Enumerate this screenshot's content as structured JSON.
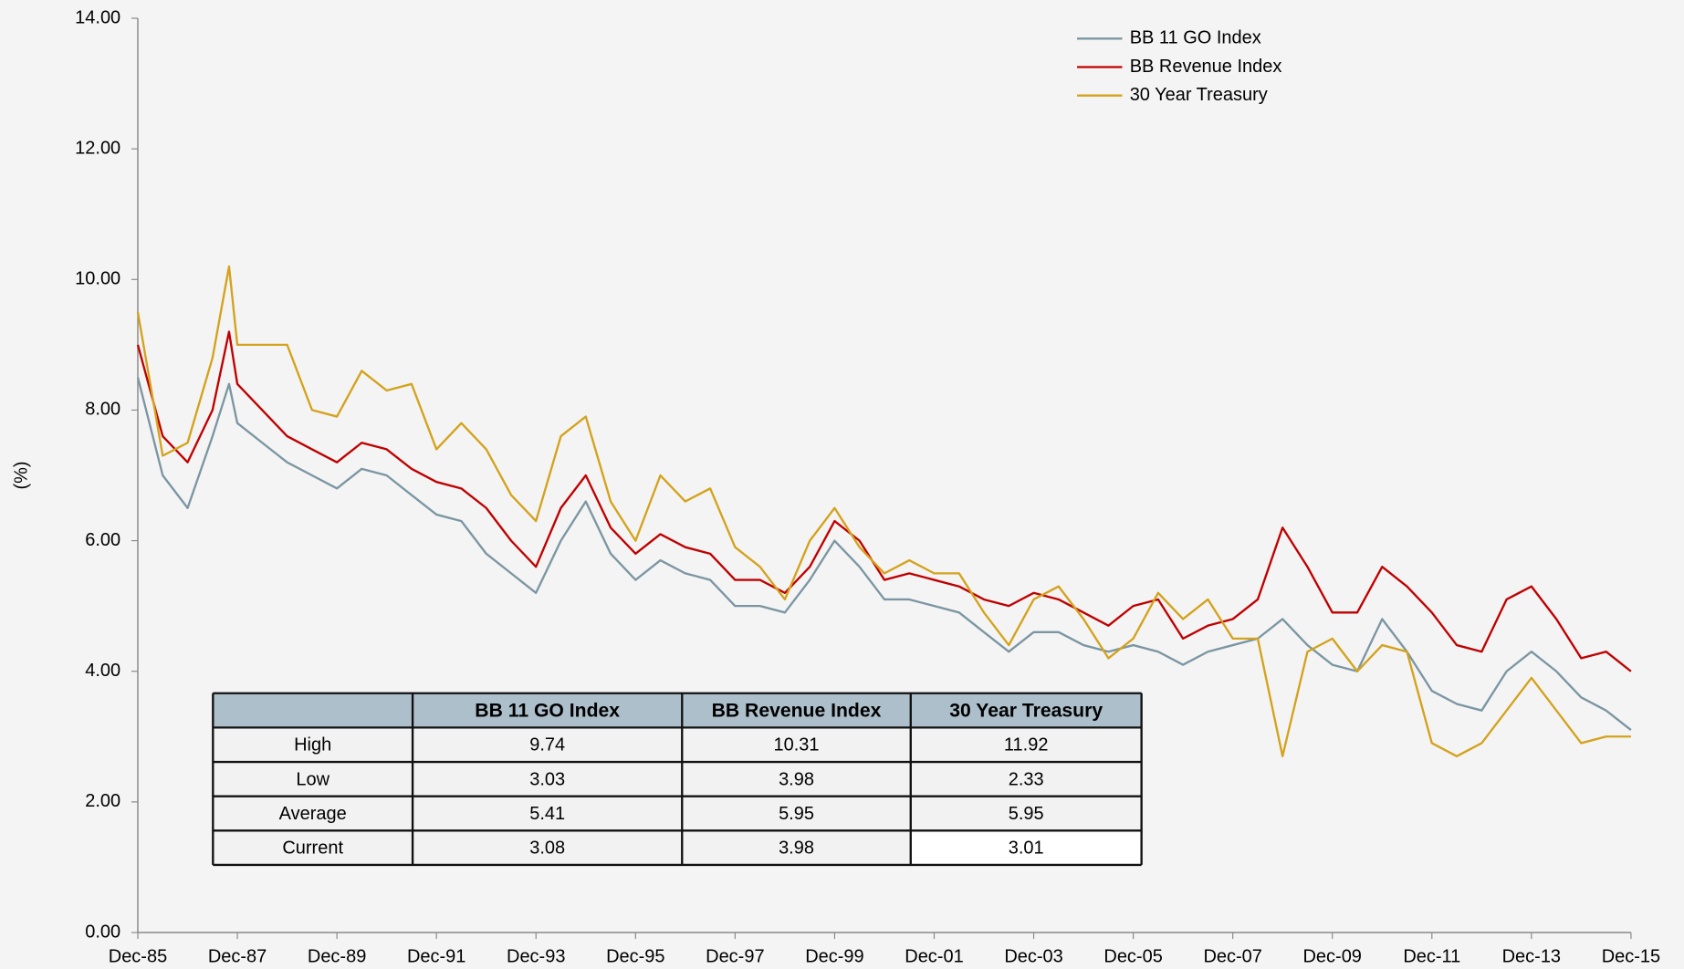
{
  "chart_data": {
    "type": "line",
    "y_label": "(%)",
    "x": [
      "Dec-85",
      "Jun-86",
      "Dec-86",
      "Jun-87",
      "Oct-87",
      "Dec-87",
      "Jun-88",
      "Dec-88",
      "Jun-89",
      "Dec-89",
      "Jun-90",
      "Dec-90",
      "Jun-91",
      "Dec-91",
      "Jun-92",
      "Dec-92",
      "Jun-93",
      "Dec-93",
      "Jun-94",
      "Dec-94",
      "Jun-95",
      "Dec-95",
      "Jun-96",
      "Dec-96",
      "Jun-97",
      "Dec-97",
      "Jun-98",
      "Dec-98",
      "Jun-99",
      "Dec-99",
      "Jun-00",
      "Dec-00",
      "Jun-01",
      "Dec-01",
      "Jun-02",
      "Dec-02",
      "Jun-03",
      "Dec-03",
      "Jun-04",
      "Dec-04",
      "Jun-05",
      "Dec-05",
      "Jun-06",
      "Dec-06",
      "Jun-07",
      "Dec-07",
      "Jun-08",
      "Dec-08",
      "Jun-09",
      "Dec-09",
      "Jun-10",
      "Dec-10",
      "Jun-11",
      "Dec-11",
      "Jun-12",
      "Dec-12",
      "Jun-13",
      "Dec-13",
      "Jun-14",
      "Dec-14",
      "Jun-15",
      "Dec-15"
    ],
    "series": [
      {
        "name": "BB 11 GO Index",
        "color": "#7b96a2",
        "values": [
          8.5,
          7.0,
          6.5,
          7.6,
          8.4,
          7.8,
          7.5,
          7.2,
          7.0,
          6.8,
          7.1,
          7.0,
          6.7,
          6.4,
          6.3,
          5.8,
          5.5,
          5.2,
          6.0,
          6.6,
          5.8,
          5.4,
          5.7,
          5.5,
          5.4,
          5.0,
          5.0,
          4.9,
          5.4,
          6.0,
          5.6,
          5.1,
          5.1,
          5.0,
          4.9,
          4.6,
          4.3,
          4.6,
          4.6,
          4.4,
          4.3,
          4.4,
          4.3,
          4.1,
          4.3,
          4.4,
          4.5,
          4.8,
          4.4,
          4.1,
          4.0,
          4.8,
          4.3,
          3.7,
          3.5,
          3.4,
          4.0,
          4.3,
          4.0,
          3.6,
          3.4,
          3.1
        ]
      },
      {
        "name": "BB Revenue Index",
        "color": "#c00000",
        "values": [
          9.0,
          7.6,
          7.2,
          8.0,
          9.2,
          8.4,
          8.0,
          7.6,
          7.4,
          7.2,
          7.5,
          7.4,
          7.1,
          6.9,
          6.8,
          6.5,
          6.0,
          5.6,
          6.5,
          7.0,
          6.2,
          5.8,
          6.1,
          5.9,
          5.8,
          5.4,
          5.4,
          5.2,
          5.6,
          6.3,
          6.0,
          5.4,
          5.5,
          5.4,
          5.3,
          5.1,
          5.0,
          5.2,
          5.1,
          4.9,
          4.7,
          5.0,
          5.1,
          4.5,
          4.7,
          4.8,
          5.1,
          6.2,
          5.6,
          4.9,
          4.9,
          5.6,
          5.3,
          4.9,
          4.4,
          4.3,
          5.1,
          5.3,
          4.8,
          4.2,
          4.3,
          4.0
        ]
      },
      {
        "name": "30 Year Treasury",
        "color": "#d4a21c",
        "values": [
          9.5,
          7.3,
          7.5,
          8.8,
          10.2,
          9.0,
          9.0,
          9.0,
          8.0,
          7.9,
          8.6,
          8.3,
          8.4,
          7.4,
          7.8,
          7.4,
          6.7,
          6.3,
          7.6,
          7.9,
          6.6,
          6.0,
          7.0,
          6.6,
          6.8,
          5.9,
          5.6,
          5.1,
          6.0,
          6.5,
          5.9,
          5.5,
          5.7,
          5.5,
          5.5,
          4.9,
          4.4,
          5.1,
          5.3,
          4.8,
          4.2,
          4.5,
          5.2,
          4.8,
          5.1,
          4.5,
          4.5,
          2.7,
          4.3,
          4.5,
          4.0,
          4.4,
          4.3,
          2.9,
          2.7,
          2.9,
          3.4,
          3.9,
          3.4,
          2.9,
          3.0,
          3.0
        ]
      }
    ],
    "xlim": [
      "Dec-85",
      "Dec-15"
    ],
    "xticks": [
      "Dec-85",
      "Dec-87",
      "Dec-89",
      "Dec-91",
      "Dec-93",
      "Dec-95",
      "Dec-97",
      "Dec-99",
      "Dec-01",
      "Dec-03",
      "Dec-05",
      "Dec-07",
      "Dec-09",
      "Dec-11",
      "Dec-13",
      "Dec-15"
    ],
    "ylim": [
      0,
      14
    ],
    "yticks": [
      {
        "value": 0,
        "label": "0.00"
      },
      {
        "value": 2,
        "label": "2.00"
      },
      {
        "value": 4,
        "label": "4.00"
      },
      {
        "value": 6,
        "label": "6.00"
      },
      {
        "value": 8,
        "label": "8.00"
      },
      {
        "value": 10,
        "label": "10.00"
      },
      {
        "value": 12,
        "label": "12.00"
      },
      {
        "value": 14,
        "label": "14.00"
      }
    ],
    "grid": false,
    "legend": "upper right"
  },
  "table": {
    "header": [
      "BB 11 GO Index",
      "BB Revenue Index",
      "30 Year Treasury"
    ],
    "rows": [
      {
        "label": "High",
        "values": [
          9.74,
          10.31,
          11.92
        ]
      },
      {
        "label": "Low",
        "values": [
          3.03,
          3.98,
          2.33
        ]
      },
      {
        "label": "Average",
        "values": [
          5.41,
          5.95,
          5.95
        ]
      },
      {
        "label": "Current",
        "values": [
          3.08,
          3.98,
          3.01
        ]
      }
    ]
  }
}
